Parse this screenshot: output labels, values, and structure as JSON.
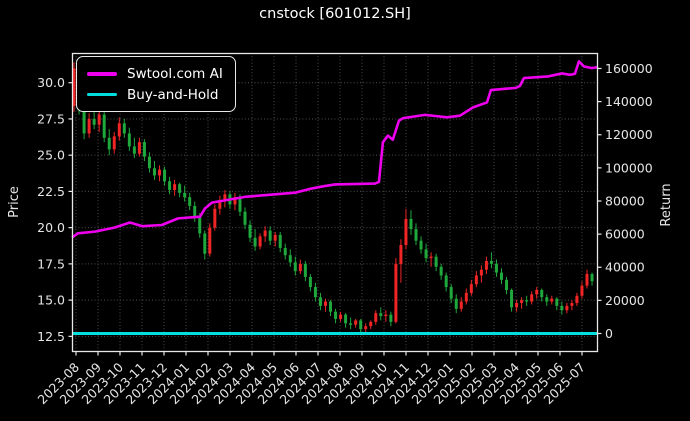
{
  "title": "cnstock [601012.SH]",
  "axes": {
    "x": {
      "tick_labels": [
        "2023-08",
        "2023-09",
        "2023-10",
        "2023-11",
        "2023-12",
        "2024-01",
        "2024-02",
        "2024-03",
        "2024-04",
        "2024-05",
        "2024-06",
        "2024-07",
        "2024-08",
        "2024-09",
        "2024-10",
        "2024-11",
        "2024-12",
        "2025-01",
        "2025-02",
        "2025-03",
        "2025-04",
        "2025-05",
        "2025-06",
        "2025-07"
      ],
      "range_months": [
        -0.1818,
        23.7273
      ]
    },
    "price": {
      "label": "Price",
      "tick_values": [
        12.5,
        15.0,
        17.5,
        20.0,
        22.5,
        25.0,
        27.5,
        30.0
      ],
      "tick_labels": [
        "12.5",
        "15.0",
        "17.5",
        "20.0",
        "22.5",
        "25.0",
        "27.5",
        "30.0"
      ],
      "range": [
        11.42,
        32.05
      ]
    },
    "return": {
      "label": "Return",
      "tick_values": [
        0,
        20000,
        40000,
        60000,
        80000,
        100000,
        120000,
        140000,
        160000
      ],
      "tick_labels": [
        "0",
        "20000",
        "40000",
        "60000",
        "80000",
        "100000",
        "120000",
        "140000",
        "160000"
      ],
      "range": [
        -11170,
        169350
      ]
    }
  },
  "legend": {
    "items": [
      {
        "label": "Swtool.com AI",
        "color": "#ee00ee",
        "thickness": 4
      },
      {
        "label": "Buy-and-Hold",
        "color": "#00dede",
        "thickness": 3.5
      }
    ]
  },
  "colors": {
    "background": "#000000",
    "spine": "#e8e8e8",
    "tick_text": "#e6e6e6",
    "grid": "#4f4f4f",
    "candle_up": "#f02525",
    "candle_down": "#1fa83c",
    "ai_line": "#ee00ee",
    "buy_hold_line": "#00dede"
  },
  "chart_data": {
    "type": "candlestick+line",
    "title": "cnstock [601012.SH]",
    "x_axis": "months from 2023-08 to 2025-07",
    "left_axis": "Price (stock OHLC)",
    "right_axis": "Return (strategy equity)",
    "grid": "dotted, on price ticks and month ticks",
    "legend_position": "upper-left",
    "candles_note": "weekly OHLC estimates read from daily chart",
    "candle_month_start": -0.09,
    "candle_month_step": 0.2286,
    "candles_ohlc": [
      [
        28.4,
        31.4,
        28.0,
        31.0
      ],
      [
        31.0,
        31.2,
        27.8,
        28.1
      ],
      [
        28.1,
        28.4,
        26.1,
        26.5
      ],
      [
        26.5,
        27.9,
        26.2,
        27.5
      ],
      [
        27.5,
        28.3,
        26.8,
        27.1
      ],
      [
        27.1,
        28.1,
        26.6,
        27.8
      ],
      [
        27.8,
        28.0,
        25.9,
        26.2
      ],
      [
        26.2,
        26.8,
        25.0,
        25.4
      ],
      [
        25.4,
        26.6,
        25.1,
        26.3
      ],
      [
        26.3,
        27.6,
        26.0,
        27.2
      ],
      [
        27.2,
        27.5,
        26.2,
        26.5
      ],
      [
        26.5,
        26.9,
        25.3,
        25.6
      ],
      [
        25.6,
        26.2,
        24.8,
        25.1
      ],
      [
        25.1,
        26.2,
        24.9,
        25.9
      ],
      [
        25.9,
        26.1,
        24.6,
        24.9
      ],
      [
        24.9,
        25.2,
        23.8,
        24.1
      ],
      [
        24.1,
        24.6,
        23.3,
        23.6
      ],
      [
        23.6,
        24.3,
        23.2,
        24.0
      ],
      [
        24.0,
        24.2,
        22.9,
        23.2
      ],
      [
        23.2,
        23.5,
        22.3,
        22.6
      ],
      [
        22.6,
        23.3,
        22.2,
        23.0
      ],
      [
        23.0,
        23.1,
        22.1,
        22.4
      ],
      [
        22.4,
        22.9,
        21.8,
        22.1
      ],
      [
        22.1,
        22.4,
        21.2,
        21.5
      ],
      [
        21.5,
        21.8,
        20.4,
        20.7
      ],
      [
        20.7,
        21.0,
        19.3,
        19.6
      ],
      [
        19.6,
        19.8,
        17.8,
        18.2
      ],
      [
        18.2,
        20.3,
        18.0,
        20.0
      ],
      [
        20.0,
        21.6,
        19.8,
        21.3
      ],
      [
        21.3,
        22.2,
        20.9,
        21.9
      ],
      [
        21.9,
        22.6,
        21.4,
        22.3
      ],
      [
        22.3,
        22.5,
        21.3,
        21.6
      ],
      [
        21.6,
        22.4,
        21.2,
        22.1
      ],
      [
        22.1,
        22.3,
        20.8,
        21.1
      ],
      [
        21.1,
        21.4,
        19.9,
        20.2
      ],
      [
        20.2,
        20.5,
        19.0,
        19.3
      ],
      [
        19.3,
        19.9,
        18.4,
        18.7
      ],
      [
        18.7,
        19.6,
        18.5,
        19.4
      ],
      [
        19.4,
        20.1,
        19.0,
        19.8
      ],
      [
        19.8,
        20.1,
        18.8,
        19.1
      ],
      [
        19.1,
        19.7,
        18.7,
        19.5
      ],
      [
        19.5,
        19.7,
        18.3,
        18.6
      ],
      [
        18.6,
        18.9,
        17.8,
        18.1
      ],
      [
        18.1,
        18.5,
        17.3,
        17.6
      ],
      [
        17.6,
        18.0,
        16.7,
        17.0
      ],
      [
        17.0,
        17.8,
        16.8,
        17.5
      ],
      [
        17.5,
        17.7,
        16.3,
        16.6
      ],
      [
        16.6,
        16.8,
        15.6,
        15.9
      ],
      [
        15.9,
        16.2,
        14.9,
        15.2
      ],
      [
        15.2,
        15.5,
        14.3,
        14.6
      ],
      [
        14.6,
        15.1,
        14.2,
        14.9
      ],
      [
        14.9,
        15.0,
        13.9,
        14.2
      ],
      [
        14.2,
        14.4,
        13.4,
        13.7
      ],
      [
        13.7,
        14.2,
        13.5,
        14.0
      ],
      [
        14.0,
        14.1,
        13.1,
        13.4
      ],
      [
        13.4,
        13.8,
        13.0,
        13.3
      ],
      [
        13.3,
        13.7,
        13.1,
        13.6
      ],
      [
        13.6,
        13.7,
        12.8,
        13.0
      ],
      [
        13.0,
        13.4,
        12.8,
        13.2
      ],
      [
        13.2,
        13.6,
        13.0,
        13.5
      ],
      [
        13.5,
        14.3,
        13.3,
        14.1
      ],
      [
        14.1,
        14.5,
        13.6,
        13.9
      ],
      [
        13.9,
        14.3,
        13.5,
        14.0
      ],
      [
        14.0,
        14.2,
        13.2,
        13.5
      ],
      [
        13.5,
        17.9,
        13.4,
        17.5
      ],
      [
        17.5,
        19.2,
        16.2,
        18.8
      ],
      [
        18.8,
        21.3,
        18.5,
        20.6
      ],
      [
        20.6,
        21.2,
        19.5,
        19.9
      ],
      [
        19.9,
        20.3,
        18.8,
        19.1
      ],
      [
        19.1,
        19.4,
        18.2,
        18.5
      ],
      [
        18.5,
        18.9,
        17.6,
        17.9
      ],
      [
        17.9,
        18.3,
        17.3,
        18.0
      ],
      [
        18.0,
        18.2,
        17.0,
        17.3
      ],
      [
        17.3,
        17.5,
        16.4,
        16.7
      ],
      [
        16.7,
        16.9,
        15.6,
        15.9
      ],
      [
        15.9,
        16.1,
        14.8,
        15.1
      ],
      [
        15.1,
        15.4,
        14.1,
        14.4
      ],
      [
        14.4,
        15.2,
        14.2,
        14.9
      ],
      [
        14.9,
        15.8,
        14.7,
        15.5
      ],
      [
        15.5,
        16.4,
        15.3,
        16.1
      ],
      [
        16.1,
        17.0,
        15.9,
        16.7
      ],
      [
        16.7,
        17.4,
        16.2,
        17.1
      ],
      [
        17.1,
        18.0,
        16.8,
        17.7
      ],
      [
        17.7,
        18.3,
        17.2,
        17.5
      ],
      [
        17.5,
        17.8,
        16.6,
        16.9
      ],
      [
        16.9,
        17.2,
        16.1,
        16.4
      ],
      [
        16.4,
        16.6,
        15.4,
        15.7
      ],
      [
        15.7,
        15.8,
        14.2,
        14.5
      ],
      [
        14.5,
        15.0,
        14.2,
        14.8
      ],
      [
        14.8,
        15.2,
        14.4,
        15.0
      ],
      [
        15.0,
        15.3,
        14.6,
        14.9
      ],
      [
        14.9,
        15.6,
        14.7,
        15.4
      ],
      [
        15.4,
        15.9,
        15.1,
        15.7
      ],
      [
        15.7,
        15.8,
        14.9,
        15.2
      ],
      [
        15.2,
        15.4,
        14.6,
        14.9
      ],
      [
        14.9,
        15.3,
        14.7,
        15.1
      ],
      [
        15.1,
        15.2,
        14.3,
        14.6
      ],
      [
        14.6,
        14.9,
        14.0,
        14.3
      ],
      [
        14.3,
        14.8,
        14.1,
        14.6
      ],
      [
        14.6,
        15.0,
        14.3,
        14.8
      ],
      [
        14.8,
        15.5,
        14.6,
        15.3
      ],
      [
        15.3,
        16.3,
        15.1,
        16.0
      ],
      [
        16.0,
        17.1,
        15.8,
        16.8
      ],
      [
        16.8,
        16.9,
        16.0,
        16.3
      ]
    ],
    "series": [
      {
        "name": "Swtool.com AI",
        "axis": "return",
        "points_month_value": [
          [
            -0.18,
            58000
          ],
          [
            0.09,
            60500
          ],
          [
            0.86,
            61500
          ],
          [
            1.77,
            64000
          ],
          [
            2.45,
            67000
          ],
          [
            3.0,
            64800
          ],
          [
            3.9,
            65500
          ],
          [
            4.64,
            69500
          ],
          [
            5.64,
            70500
          ],
          [
            5.86,
            75500
          ],
          [
            6.18,
            79000
          ],
          [
            7.68,
            82500
          ],
          [
            9.95,
            85000
          ],
          [
            10.7,
            87500
          ],
          [
            11.3,
            89000
          ],
          [
            11.77,
            90000
          ],
          [
            13.59,
            90500
          ],
          [
            13.77,
            91500
          ],
          [
            13.95,
            115500
          ],
          [
            14.18,
            119500
          ],
          [
            14.4,
            117000
          ],
          [
            14.68,
            128500
          ],
          [
            14.86,
            130000
          ],
          [
            15.86,
            132000
          ],
          [
            16.86,
            130500
          ],
          [
            17.45,
            131500
          ],
          [
            18.05,
            136500
          ],
          [
            18.68,
            139500
          ],
          [
            18.86,
            147000
          ],
          [
            20.0,
            148300
          ],
          [
            20.18,
            149500
          ],
          [
            20.36,
            154200
          ],
          [
            21.45,
            155200
          ],
          [
            22.09,
            157000
          ],
          [
            22.45,
            156200
          ],
          [
            22.68,
            156800
          ],
          [
            22.86,
            164300
          ],
          [
            23.09,
            161200
          ],
          [
            23.45,
            160200
          ],
          [
            23.73,
            160900
          ]
        ]
      },
      {
        "name": "Buy-and-Hold",
        "axis": "return",
        "flat_value": 0,
        "points_month_value": [
          [
            -0.18,
            0
          ],
          [
            23.73,
            0
          ]
        ]
      }
    ]
  }
}
